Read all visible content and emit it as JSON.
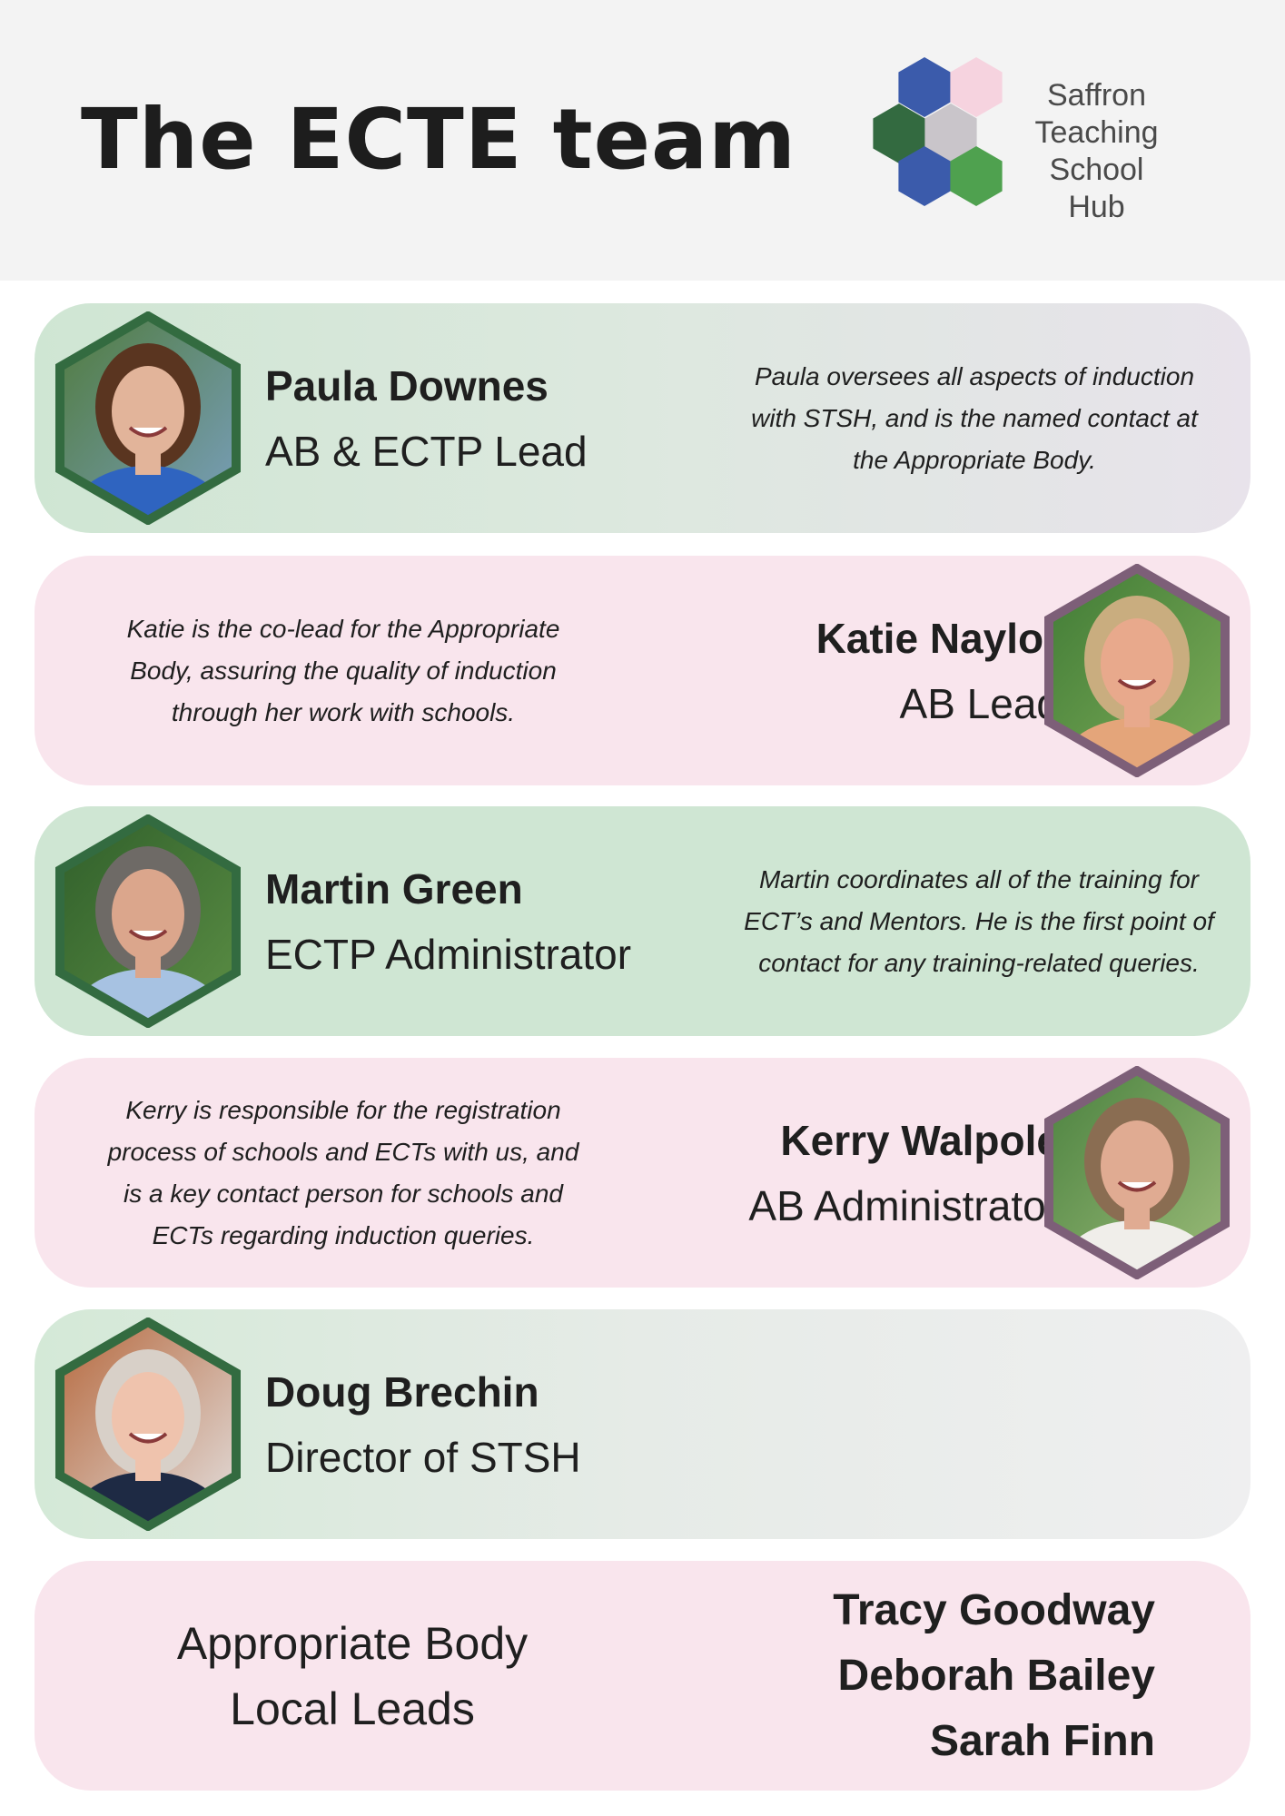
{
  "header": {
    "title": "The ECTE team",
    "logo": {
      "lines": [
        "Saffron",
        "Teaching School",
        "Hub"
      ],
      "colors": [
        "#3b5bab",
        "#f6d3df",
        "#336a40",
        "#c9c5ca",
        "#3b5bab",
        "#4fa14f"
      ]
    }
  },
  "colors": {
    "green_border": "#336b40",
    "purple_border": "#7d5f78",
    "green_card": "#cfe6d3",
    "pink_card": "#f9e5ed"
  },
  "team": [
    {
      "name": "Paula Downes",
      "role": "AB & ECTP Lead",
      "description": "Paula oversees all aspects of induction with STSH, and is the named contact at the Appropriate Body."
    },
    {
      "name": "Katie Naylor",
      "role": "AB Lead",
      "description": "Katie is the co-lead for the Appropriate Body, assuring the quality of induction through her work with schools."
    },
    {
      "name": "Martin Green",
      "role": "ECTP Administrator",
      "description": "Martin coordinates all of the training for ECT’s and Mentors. He is the first point of contact for any training-related queries."
    },
    {
      "name": "Kerry Walpole",
      "role": "AB Administrator",
      "description": "Kerry is responsible for the registration process of schools and ECTs with us, and is a key contact person for schools and ECTs regarding induction queries."
    },
    {
      "name": "Doug Brechin",
      "role": "Director of STSH"
    }
  ],
  "local_leads": {
    "label_lines": [
      "Appropriate Body",
      "Local Leads"
    ],
    "names": [
      "Tracy Goodway",
      "Deborah Bailey",
      "Sarah Finn"
    ]
  }
}
